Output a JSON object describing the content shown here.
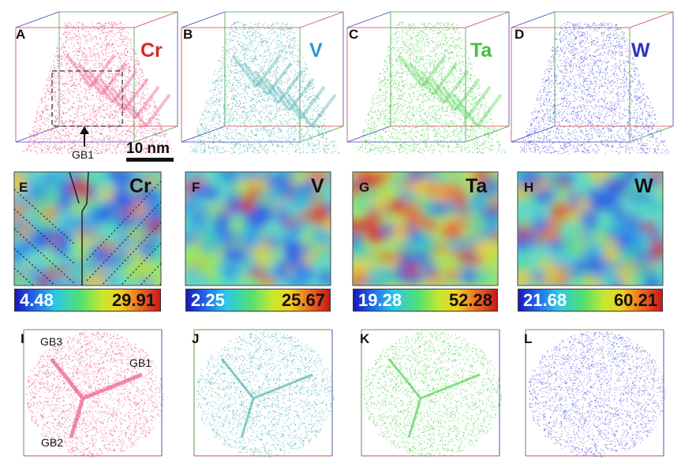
{
  "figure": {
    "top_row": [
      {
        "label": "A",
        "element": "Cr",
        "color": "#e8407a",
        "element_color": "#d42a2a"
      },
      {
        "label": "B",
        "element": "V",
        "color": "#3aa8a8",
        "element_color": "#2a98d8"
      },
      {
        "label": "C",
        "element": "Ta",
        "color": "#3ccc3c",
        "element_color": "#40c040"
      },
      {
        "label": "D",
        "element": "W",
        "color": "#4848e0",
        "element_color": "#3030c8"
      }
    ],
    "gb1_label": "GB1",
    "scale_bar": "10 nm",
    "maps": [
      {
        "label": "E",
        "element": "Cr",
        "min": "4.48",
        "max": "29.91"
      },
      {
        "label": "F",
        "element": "V",
        "min": "2.25",
        "max": "25.67"
      },
      {
        "label": "G",
        "element": "Ta",
        "min": "19.28",
        "max": "52.28"
      },
      {
        "label": "H",
        "element": "W",
        "min": "21.68",
        "max": "60.21"
      }
    ],
    "bottom_row": [
      {
        "label": "I",
        "color": "#e8407a"
      },
      {
        "label": "J",
        "color": "#3aa8a8"
      },
      {
        "label": "K",
        "color": "#3ccc3c"
      },
      {
        "label": "L",
        "color": "#4848e0"
      }
    ],
    "grain_boundaries": [
      "GB1",
      "GB2",
      "GB3"
    ]
  }
}
